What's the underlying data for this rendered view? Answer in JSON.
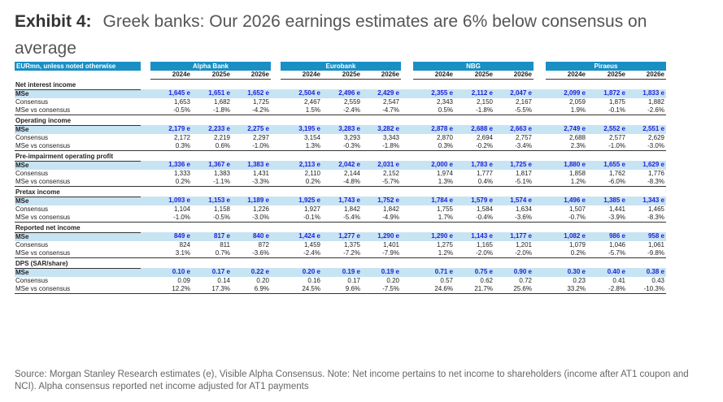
{
  "title": {
    "exhibit": "Exhibit 4:",
    "text": "Greek banks: Our 2026 earnings estimates are 6% below consensus on average"
  },
  "table": {
    "corner": "EURmn, unless noted otherwise",
    "banks": [
      "Alpha Bank",
      "Eurobank",
      "NBG",
      "Piraeus"
    ],
    "years": [
      "2024e",
      "2025e",
      "2026e"
    ],
    "sections": [
      {
        "name": "Net interest income",
        "rows": [
          {
            "label": "MSe",
            "values": [
              "1,645 e",
              "1,651 e",
              "1,652 e",
              "2,504 e",
              "2,496 e",
              "2,429 e",
              "2,355 e",
              "2,112 e",
              "2,047 e",
              "2,099 e",
              "1,872 e",
              "1,833 e"
            ]
          },
          {
            "label": "Consensus",
            "values": [
              "1,653",
              "1,682",
              "1,725",
              "2,467",
              "2,559",
              "2,547",
              "2,343",
              "2,150",
              "2,167",
              "2,059",
              "1,875",
              "1,882"
            ]
          },
          {
            "label": "MSe vs consensus",
            "values": [
              "-0.5%",
              "-1.8%",
              "-4.2%",
              "1.5%",
              "-2.4%",
              "-4.7%",
              "0.5%",
              "-1.8%",
              "-5.5%",
              "1.9%",
              "-0.1%",
              "-2.6%"
            ]
          }
        ]
      },
      {
        "name": "Operating income",
        "rows": [
          {
            "label": "MSe",
            "values": [
              "2,179 e",
              "2,233 e",
              "2,275 e",
              "3,195 e",
              "3,283 e",
              "3,282 e",
              "2,878 e",
              "2,688 e",
              "2,663 e",
              "2,749 e",
              "2,552 e",
              "2,551 e"
            ]
          },
          {
            "label": "Consensus",
            "values": [
              "2,172",
              "2,219",
              "2,297",
              "3,154",
              "3,293",
              "3,343",
              "2,870",
              "2,694",
              "2,757",
              "2,688",
              "2,577",
              "2,629"
            ]
          },
          {
            "label": "MSe vs consensus",
            "values": [
              "0.3%",
              "0.6%",
              "-1.0%",
              "1.3%",
              "-0.3%",
              "-1.8%",
              "0.3%",
              "-0.2%",
              "-3.4%",
              "2.3%",
              "-1.0%",
              "-3.0%"
            ]
          }
        ]
      },
      {
        "name": "Pre-impairment operating profit",
        "rows": [
          {
            "label": "MSe",
            "values": [
              "1,336 e",
              "1,367 e",
              "1,383 e",
              "2,113 e",
              "2,042 e",
              "2,031 e",
              "2,000 e",
              "1,783 e",
              "1,725 e",
              "1,880 e",
              "1,655 e",
              "1,629 e"
            ]
          },
          {
            "label": "Consensus",
            "values": [
              "1,333",
              "1,383",
              "1,431",
              "2,110",
              "2,144",
              "2,152",
              "1,974",
              "1,777",
              "1,817",
              "1,858",
              "1,762",
              "1,776"
            ]
          },
          {
            "label": "MSe vs consensus",
            "values": [
              "0.2%",
              "-1.1%",
              "-3.3%",
              "0.2%",
              "-4.8%",
              "-5.7%",
              "1.3%",
              "0.4%",
              "-5.1%",
              "1.2%",
              "-6.0%",
              "-8.3%"
            ]
          }
        ]
      },
      {
        "name": "Pretax income",
        "rows": [
          {
            "label": "MSe",
            "values": [
              "1,093 e",
              "1,153 e",
              "1,189 e",
              "1,925 e",
              "1,743 e",
              "1,752 e",
              "1,784 e",
              "1,579 e",
              "1,574 e",
              "1,496 e",
              "1,385 e",
              "1,343 e"
            ]
          },
          {
            "label": "Consensus",
            "values": [
              "1,104",
              "1,158",
              "1,226",
              "1,927",
              "1,842",
              "1,842",
              "1,755",
              "1,584",
              "1,634",
              "1,507",
              "1,441",
              "1,465"
            ]
          },
          {
            "label": "MSe vs consensus",
            "values": [
              "-1.0%",
              "-0.5%",
              "-3.0%",
              "-0.1%",
              "-5.4%",
              "-4.9%",
              "1.7%",
              "-0.4%",
              "-3.6%",
              "-0.7%",
              "-3.9%",
              "-8.3%"
            ]
          }
        ]
      },
      {
        "name": "Reported net income",
        "rows": [
          {
            "label": "MSe",
            "values": [
              "849 e",
              "817 e",
              "840 e",
              "1,424 e",
              "1,277 e",
              "1,290 e",
              "1,290 e",
              "1,143 e",
              "1,177 e",
              "1,082 e",
              "986 e",
              "958 e"
            ]
          },
          {
            "label": "Consensus",
            "values": [
              "824",
              "811",
              "872",
              "1,459",
              "1,375",
              "1,401",
              "1,275",
              "1,165",
              "1,201",
              "1,079",
              "1,046",
              "1,061"
            ]
          },
          {
            "label": "MSe vs consensus",
            "values": [
              "3.1%",
              "0.7%",
              "-3.6%",
              "-2.4%",
              "-7.2%",
              "-7.9%",
              "1.2%",
              "-2.0%",
              "-2.0%",
              "0.2%",
              "-5.7%",
              "-9.8%"
            ]
          }
        ]
      },
      {
        "name": "DPS (SAR/share)",
        "rows": [
          {
            "label": "MSe",
            "values": [
              "0.10 e",
              "0.17 e",
              "0.22 e",
              "0.20 e",
              "0.19 e",
              "0.19 e",
              "0.71 e",
              "0.75 e",
              "0.90 e",
              "0.30 e",
              "0.40 e",
              "0.38 e"
            ]
          },
          {
            "label": "Consensus",
            "values": [
              "0.09",
              "0.14",
              "0.20",
              "0.16",
              "0.17",
              "0.20",
              "0.57",
              "0.62",
              "0.72",
              "0.23",
              "0.41",
              "0.43"
            ]
          },
          {
            "label": "MSe vs consensus",
            "values": [
              "12.2%",
              "17.3%",
              "6.9%",
              "24.5%",
              "9.6%",
              "-7.5%",
              "24.6%",
              "21.7%",
              "25.6%",
              "33.2%",
              "-2.8%",
              "-10.3%"
            ]
          }
        ]
      }
    ]
  },
  "source": "Source: Morgan Stanley Research estimates (e), Visible Alpha Consensus. Note: Net income pertains to net income to shareholders (income after AT1 coupon and NCI). Alpha consensus reported net income adjusted for AT1 payments",
  "colors": {
    "header": "#1a8fc4",
    "mse_row": "#c7e4f3",
    "mse_text": "#2323d8"
  }
}
